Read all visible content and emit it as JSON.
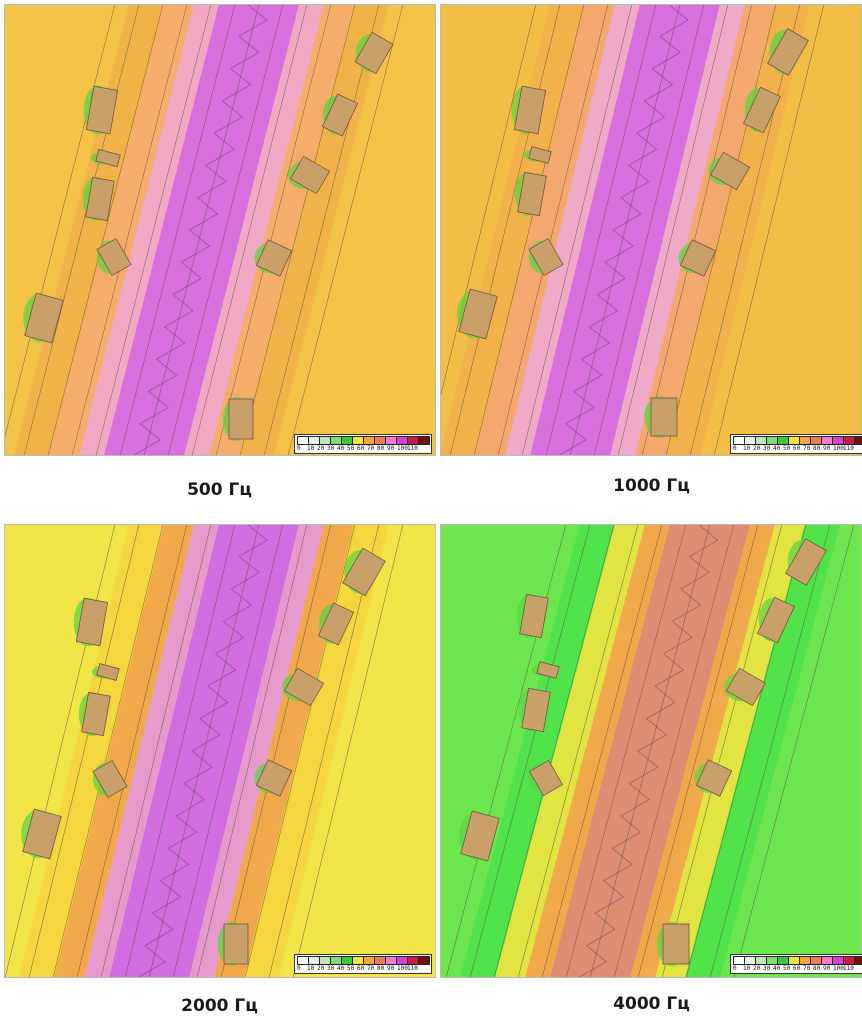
{
  "panels": [
    {
      "caption": "500 Гц",
      "palette": [
        "#f0b24a",
        "#f6ac6e",
        "#f0a8c8",
        "#d56be0"
      ],
      "background": "#f2c347"
    },
    {
      "caption": "1000 Гц",
      "palette": [
        "#f1b04c",
        "#f3a870",
        "#eeaacc",
        "#d56be0"
      ],
      "background": "#f2be45"
    },
    {
      "caption": "2000 Гц",
      "palette": [
        "#f3d53f",
        "#f1a74c",
        "#e59ad3",
        "#d06ae0"
      ],
      "background": "#f1e647"
    },
    {
      "caption": "4000 Гц",
      "palette": [
        "#4fe34a",
        "#e9e440",
        "#f1a64c",
        "#dd8b74"
      ],
      "background": "#6ee74e"
    }
  ],
  "legend": {
    "labels": [
      "0",
      "10",
      "20",
      "30",
      "40",
      "50",
      "60",
      "70",
      "80",
      "90",
      "100",
      "110"
    ],
    "colors": [
      "#ffffff",
      "#e8f3e8",
      "#bfe8b8",
      "#7fdc78",
      "#3cc83a",
      "#f3e63a",
      "#f6a53f",
      "#ea7e4e",
      "#f07cd8",
      "#d542d4",
      "#c0223f",
      "#7a0e0e"
    ]
  },
  "building_color": "#caa06a"
}
